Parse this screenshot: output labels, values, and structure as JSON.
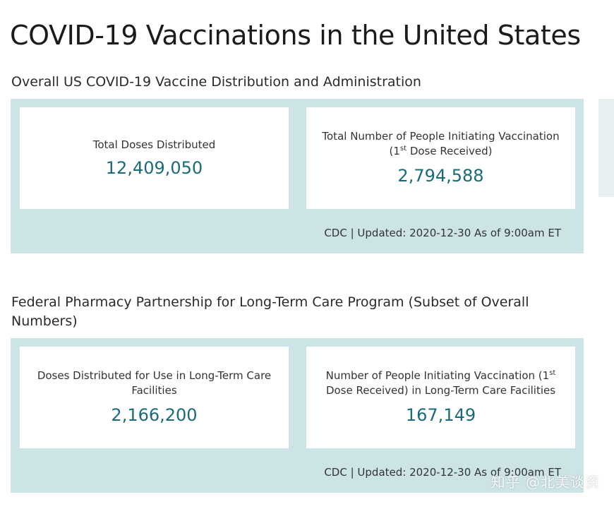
{
  "page": {
    "title": "COVID-19 Vaccinations in the United States"
  },
  "overall": {
    "heading": "Overall US COVID-19 Vaccine Distribution and Administration",
    "total_doses_label": "Total Doses Distributed",
    "total_doses_value": "12,409,050",
    "initiating_label_before": "Total Number of People Initiating Vaccination (1",
    "initiating_label_sup": "st",
    "initiating_label_after": " Dose Received)",
    "initiating_value": "2,794,588",
    "footer": "CDC | Updated: 2020-12-30 As of 9:00am ET"
  },
  "ltc": {
    "heading": "Federal Pharmacy Partnership for Long-Term Care Program (Subset of Overall Numbers)",
    "doses_label": "Doses Distributed for Use in Long-Term Care Facilities",
    "doses_value": "2,166,200",
    "initiating_label_before": "Number of People Initiating Vaccination (1",
    "initiating_label_sup": "st",
    "initiating_label_after": " Dose Received) in Long-Term Care Facilities",
    "initiating_value": "167,149",
    "footer": "CDC | Updated: 2020-12-30 As of 9:00am ET"
  },
  "watermark": {
    "text": "知乎 @北美谈资"
  },
  "colors": {
    "panel_background": "#cde4e7",
    "value_text": "#1a6b78",
    "card_background": "#ffffff"
  }
}
